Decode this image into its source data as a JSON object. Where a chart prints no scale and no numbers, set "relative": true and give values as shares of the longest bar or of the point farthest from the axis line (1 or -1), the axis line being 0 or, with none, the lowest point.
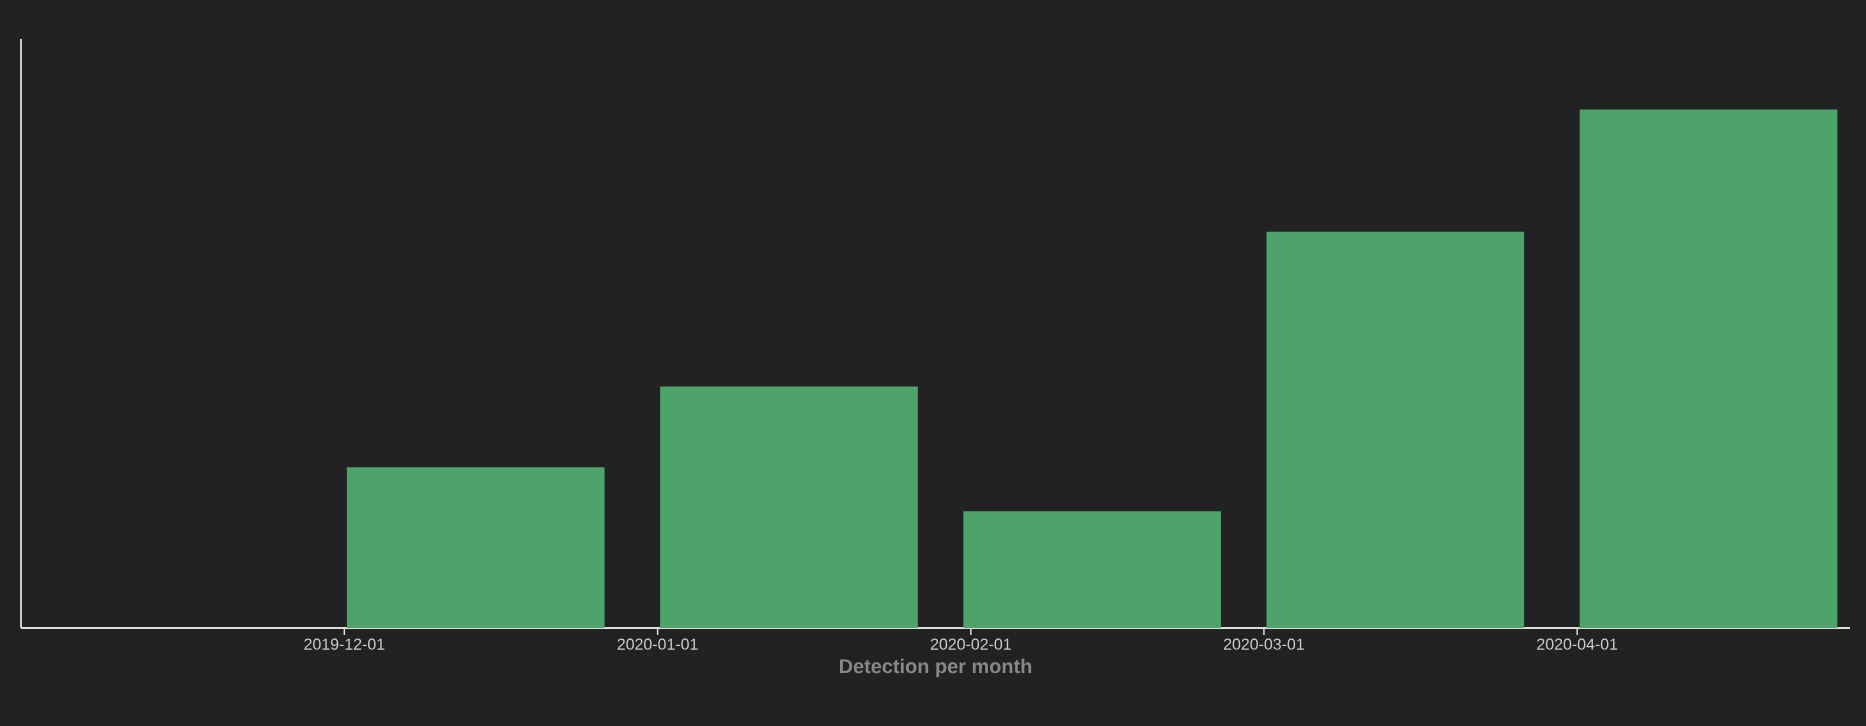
{
  "chart_data": {
    "type": "bar",
    "xlabel": "Detection per month",
    "x": [
      "2019-12-14",
      "2020-01-14",
      "2020-02-13",
      "2020-03-14",
      "2020-04-14"
    ],
    "values": [
      0.31,
      0.466,
      0.225,
      0.764,
      1
    ],
    "color": "#4ea36b",
    "relative": true,
    "xlim": [
      "2019-10-30",
      "2020-04-28"
    ],
    "xticks": [
      {
        "value": "2019-12-01",
        "label": "2019-12-01"
      },
      {
        "value": "2020-01-01",
        "label": "2020-01-01"
      },
      {
        "value": "2020-02-01",
        "label": "2020-02-01"
      },
      {
        "value": "2020-03-01",
        "label": "2020-03-01"
      },
      {
        "value": "2020-04-01",
        "label": "2020-04-01"
      }
    ],
    "grid": false
  }
}
